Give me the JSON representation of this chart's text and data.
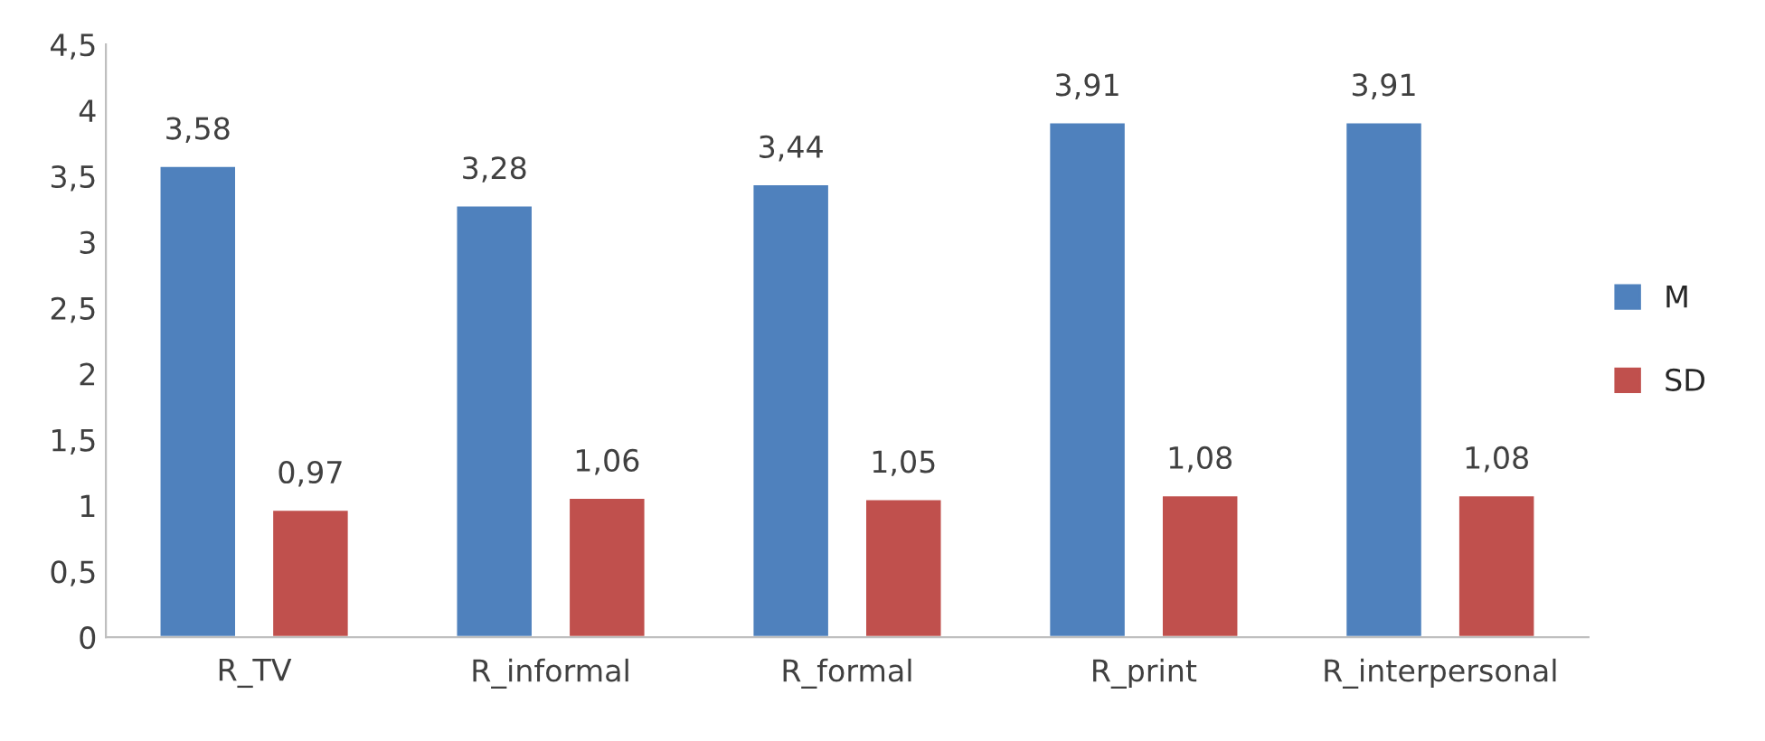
{
  "chart_data": {
    "type": "bar",
    "categories": [
      "R_TV",
      "R_informal",
      "R_formal",
      "R_print",
      "R_interpersonal"
    ],
    "series": [
      {
        "name": "M",
        "color": "#4f81bd",
        "values": [
          3.58,
          3.28,
          3.44,
          3.91,
          3.91
        ],
        "value_labels": [
          "3,58",
          "3,28",
          "3,44",
          "3,91",
          "3,91"
        ]
      },
      {
        "name": "SD",
        "color": "#c0504d",
        "values": [
          0.97,
          1.06,
          1.05,
          1.08,
          1.08
        ],
        "value_labels": [
          "0,97",
          "1,06",
          "1,05",
          "1,08",
          "1,08"
        ]
      }
    ],
    "ylim": [
      0,
      4.5
    ],
    "yticks": [
      0,
      {
        "value": 0.5,
        "label": "0,5"
      },
      1,
      {
        "value": 1.5,
        "label": "1,5"
      },
      2,
      {
        "value": 2.5,
        "label": "2,5"
      },
      3,
      {
        "value": 3.5,
        "label": "3,5"
      },
      4,
      {
        "value": 4.5,
        "label": "4,5"
      }
    ],
    "grid": false,
    "legend": "right"
  }
}
